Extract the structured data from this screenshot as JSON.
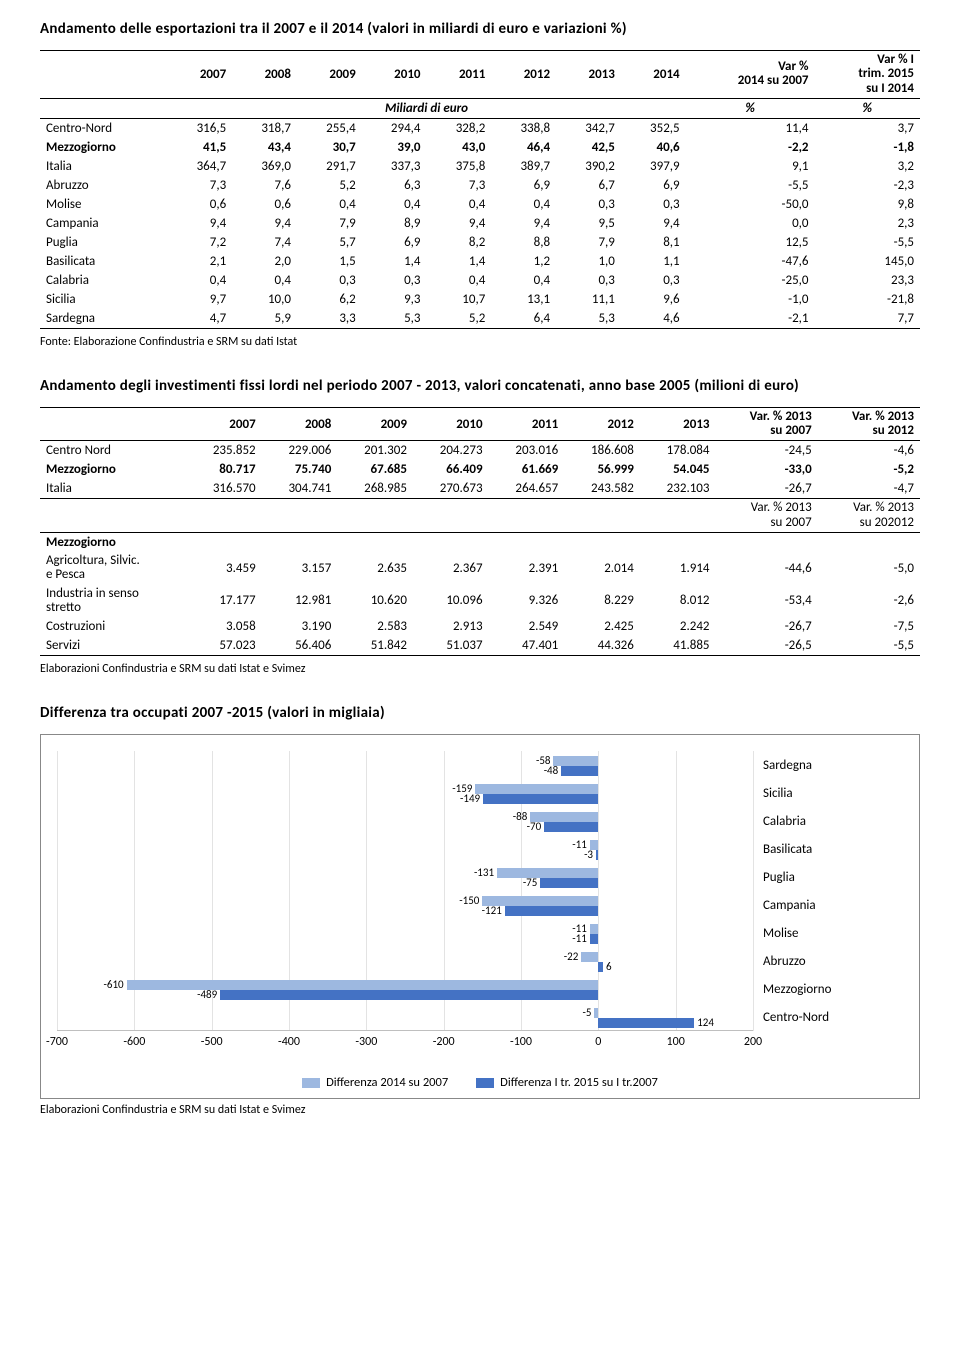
{
  "section1": {
    "title": "Andamento delle esportazioni tra il 2007 e il 2014 (valori in miliardi di euro e variazioni %)",
    "header_years": [
      "2007",
      "2008",
      "2009",
      "2010",
      "2011",
      "2012",
      "2013",
      "2014"
    ],
    "header_var1": "Var %\n2014 su 2007",
    "header_var2": "Var % I\ntrim. 2015\nsu I 2014",
    "subheader_left": "Miliardi di euro",
    "subheader_pct": "%",
    "rows": [
      {
        "label": "Centro-Nord",
        "vals": [
          "316,5",
          "318,7",
          "255,4",
          "294,4",
          "328,2",
          "338,8",
          "342,7",
          "352,5",
          "11,4",
          "3,7"
        ],
        "bold": false
      },
      {
        "label": "Mezzogiorno",
        "vals": [
          "41,5",
          "43,4",
          "30,7",
          "39,0",
          "43,0",
          "46,4",
          "42,5",
          "40,6",
          "-2,2",
          "-1,8"
        ],
        "bold": true
      },
      {
        "label": "Italia",
        "vals": [
          "364,7",
          "369,0",
          "291,7",
          "337,3",
          "375,8",
          "389,7",
          "390,2",
          "397,9",
          "9,1",
          "3,2"
        ],
        "bold": false
      },
      {
        "label": "Abruzzo",
        "vals": [
          "7,3",
          "7,6",
          "5,2",
          "6,3",
          "7,3",
          "6,9",
          "6,7",
          "6,9",
          "-5,5",
          "-2,3"
        ],
        "bold": false
      },
      {
        "label": "Molise",
        "vals": [
          "0,6",
          "0,6",
          "0,4",
          "0,4",
          "0,4",
          "0,4",
          "0,3",
          "0,3",
          "-50,0",
          "9,8"
        ],
        "bold": false
      },
      {
        "label": "Campania",
        "vals": [
          "9,4",
          "9,4",
          "7,9",
          "8,9",
          "9,4",
          "9,4",
          "9,5",
          "9,4",
          "0,0",
          "2,3"
        ],
        "bold": false
      },
      {
        "label": "Puglia",
        "vals": [
          "7,2",
          "7,4",
          "5,7",
          "6,9",
          "8,2",
          "8,8",
          "7,9",
          "8,1",
          "12,5",
          "-5,5"
        ],
        "bold": false
      },
      {
        "label": "Basilicata",
        "vals": [
          "2,1",
          "2,0",
          "1,5",
          "1,4",
          "1,4",
          "1,2",
          "1,0",
          "1,1",
          "-47,6",
          "145,0"
        ],
        "bold": false
      },
      {
        "label": "Calabria",
        "vals": [
          "0,4",
          "0,4",
          "0,3",
          "0,3",
          "0,4",
          "0,4",
          "0,3",
          "0,3",
          "-25,0",
          "23,3"
        ],
        "bold": false
      },
      {
        "label": "Sicilia",
        "vals": [
          "9,7",
          "10,0",
          "6,2",
          "9,3",
          "10,7",
          "13,1",
          "11,1",
          "9,6",
          "-1,0",
          "-21,8"
        ],
        "bold": false
      },
      {
        "label": "Sardegna",
        "vals": [
          "4,7",
          "5,9",
          "3,3",
          "5,3",
          "5,2",
          "6,4",
          "5,3",
          "4,6",
          "-2,1",
          "7,7"
        ],
        "bold": false
      }
    ],
    "source": "Fonte: Elaborazione Confindustria e SRM su dati Istat"
  },
  "section2": {
    "title": "Andamento degli investimenti fissi lordi nel periodo 2007 - 2013, valori concatenati, anno base 2005 (milioni di euro)",
    "header_years": [
      "2007",
      "2008",
      "2009",
      "2010",
      "2011",
      "2012",
      "2013"
    ],
    "header_var1": "Var. % 2013\nsu 2007",
    "header_var2": "Var. % 2013\nsu 2012",
    "rows_top": [
      {
        "label": "Centro Nord",
        "vals": [
          "235.852",
          "229.006",
          "201.302",
          "204.273",
          "203.016",
          "186.608",
          "178.084",
          "-24,5",
          "-4,6"
        ],
        "bold": false
      },
      {
        "label": "Mezzogiorno",
        "vals": [
          "80.717",
          "75.740",
          "67.685",
          "66.409",
          "61.669",
          "56.999",
          "54.045",
          "-33,0",
          "-5,2"
        ],
        "bold": true
      },
      {
        "label": "Italia",
        "vals": [
          "316.570",
          "304.741",
          "268.985",
          "270.673",
          "264.657",
          "243.582",
          "232.103",
          "-26,7",
          "-4,7"
        ],
        "bold": false
      }
    ],
    "mid_var1": "Var. % 2013\nsu 2007",
    "mid_var2": "Var. % 2013\nsu 202012",
    "mezz_label": "Mezzogiorno",
    "rows_bot": [
      {
        "label": "Agricoltura, Silvic.\ne Pesca",
        "vals": [
          "3.459",
          "3.157",
          "2.635",
          "2.367",
          "2.391",
          "2.014",
          "1.914",
          "-44,6",
          "-5,0"
        ],
        "bold": false
      },
      {
        "label": "Industria in senso\nstretto",
        "vals": [
          "17.177",
          "12.981",
          "10.620",
          "10.096",
          "9.326",
          "8.229",
          "8.012",
          "-53,4",
          "-2,6"
        ],
        "bold": false
      },
      {
        "label": "Costruzioni",
        "vals": [
          "3.058",
          "3.190",
          "2.583",
          "2.913",
          "2.549",
          "2.425",
          "2.242",
          "-26,7",
          "-7,5"
        ],
        "bold": false
      },
      {
        "label": "Servizi",
        "vals": [
          "57.023",
          "56.406",
          "51.842",
          "51.037",
          "47.401",
          "44.326",
          "41.885",
          "-26,5",
          "-5,5"
        ],
        "bold": false
      }
    ],
    "source": "Elaborazioni Confindustria e SRM su dati Istat e Svimez"
  },
  "chart": {
    "title": "Differenza tra occupati 2007 -2015 (valori in migliaia)",
    "type": "bar-horizontal-grouped",
    "categories": [
      "Sardegna",
      "Sicilia",
      "Calabria",
      "Basilicata",
      "Puglia",
      "Campania",
      "Molise",
      "Abruzzo",
      "Mezzogiorno",
      "Centro-Nord"
    ],
    "series": [
      {
        "name": "Differenza 2014 su 2007",
        "color": "#9db8e0",
        "values": [
          -58,
          -159,
          -88,
          -11,
          -131,
          -150,
          -11,
          -22,
          -610,
          -5
        ]
      },
      {
        "name": "Differenza I tr. 2015 su I tr.2007",
        "color": "#4472c4",
        "values": [
          -48,
          -149,
          -70,
          -3,
          -75,
          -121,
          -11,
          6,
          -489,
          124
        ]
      }
    ],
    "xlim": [
      -700,
      200
    ],
    "xtick_step": 100,
    "grid_color": "#e3e3e3",
    "axis_color": "#bfbfbf",
    "label_fontsize": 11,
    "source": "Elaborazioni Confindustria e SRM su dati Istat e Svimez"
  }
}
